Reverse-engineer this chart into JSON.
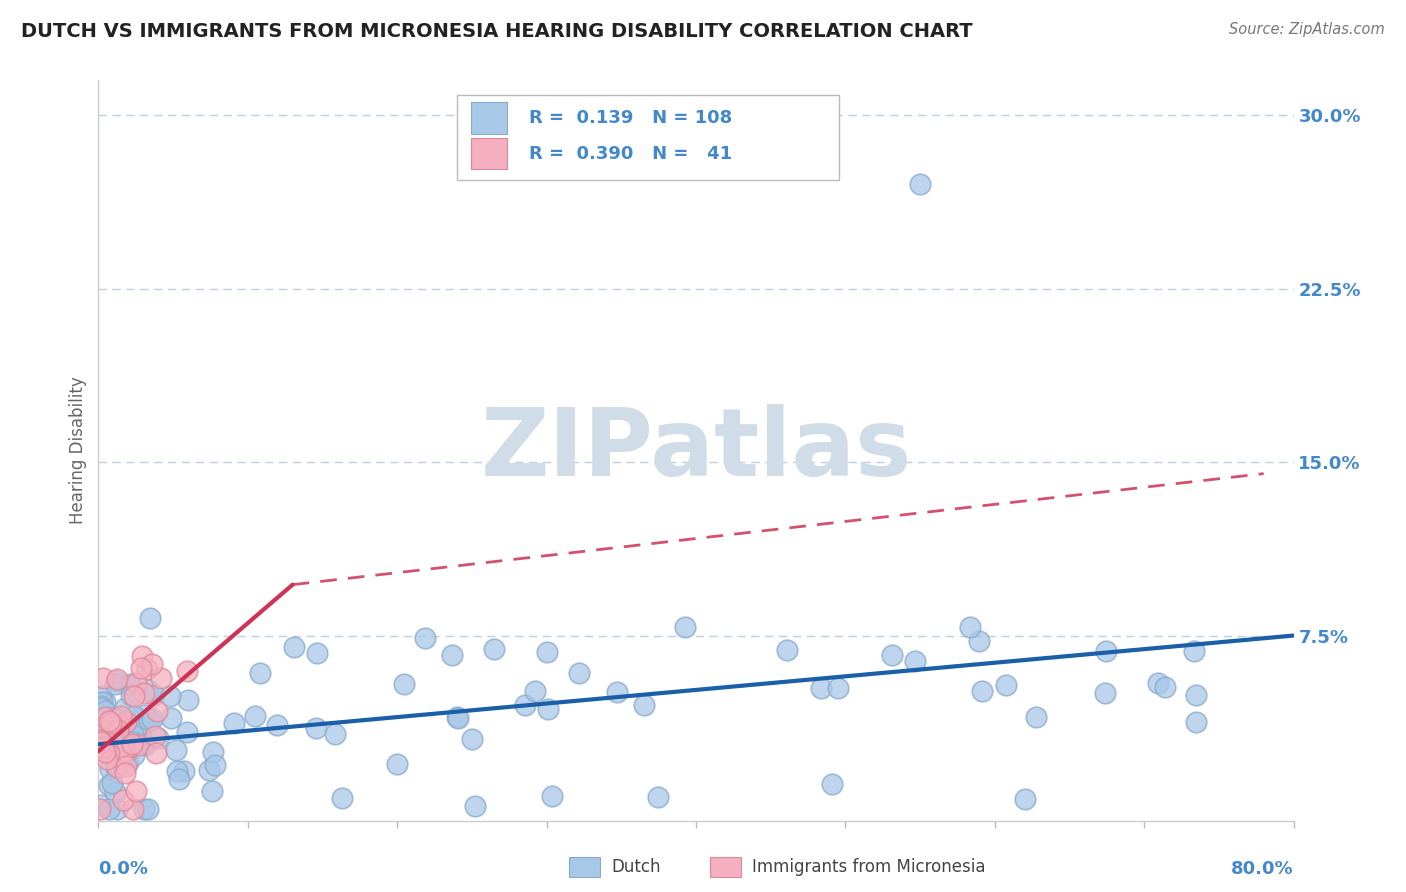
{
  "title": "DUTCH VS IMMIGRANTS FROM MICRONESIA HEARING DISABILITY CORRELATION CHART",
  "source": "Source: ZipAtlas.com",
  "ylabel": "Hearing Disability",
  "xlim": [
    0.0,
    0.8
  ],
  "ylim": [
    -0.005,
    0.315
  ],
  "dutch_color": "#a8c8e8",
  "dutch_edge_color": "#88aacc",
  "micronesia_color": "#f4b0c0",
  "micronesia_edge_color": "#dd8899",
  "dutch_line_color": "#1a5fa8",
  "micronesia_line_color": "#cc3355",
  "legend_R_dutch": "0.139",
  "legend_N_dutch": "108",
  "legend_R_micro": "0.390",
  "legend_N_micro": "41",
  "background_color": "#ffffff",
  "grid_color": "#c0d0e0",
  "title_color": "#222222",
  "axis_label_color": "#4488cc",
  "watermark_color": "#d0dde8"
}
